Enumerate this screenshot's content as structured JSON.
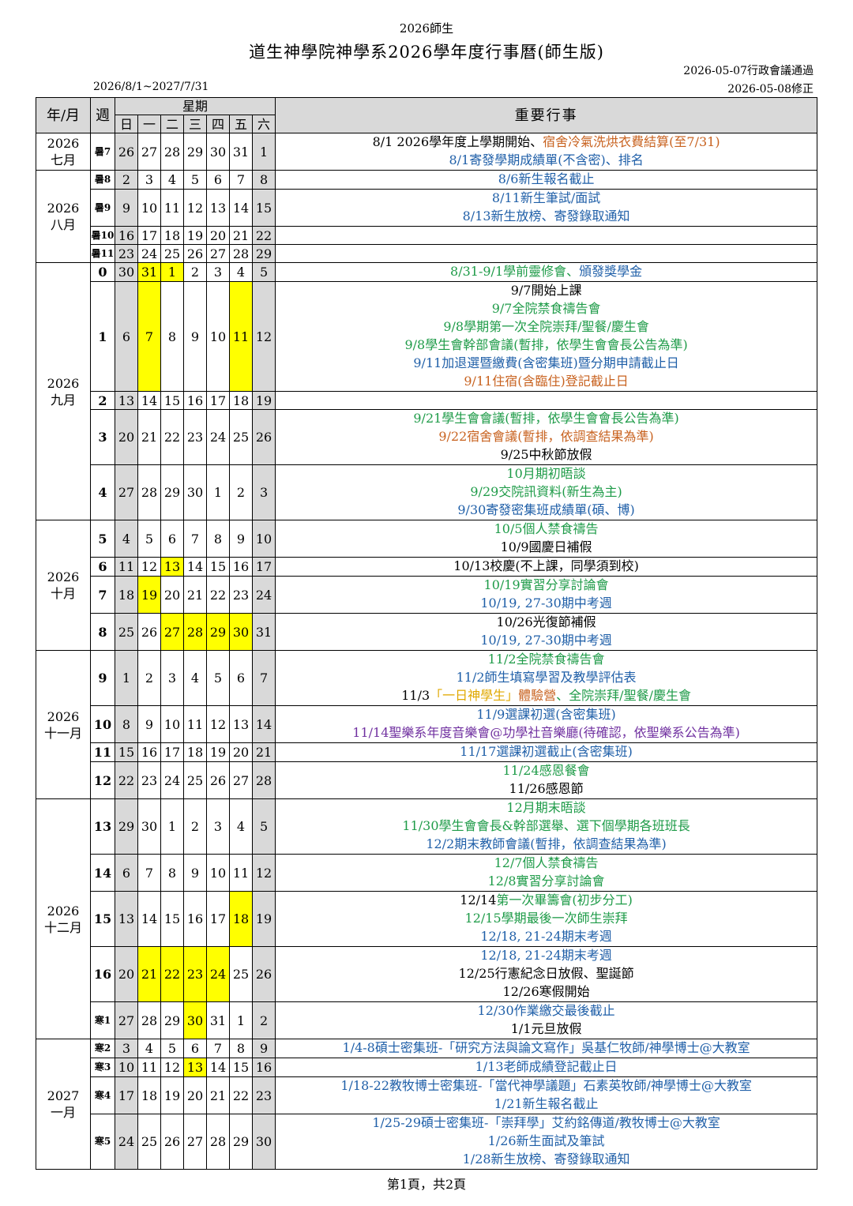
{
  "header": {
    "top_label": "2026師生",
    "title": "道生神學院神學系2026學年度行事曆(師生版)",
    "approved": "2026-05-07行政會議通過",
    "revised": "2026-05-08修正",
    "range": "2026/8/1~2027/7/31"
  },
  "columns": {
    "year_month": "年/月",
    "week": "週",
    "weekday_group": "星期",
    "days": [
      "日",
      "一",
      "二",
      "三",
      "四",
      "五",
      "六"
    ],
    "events": "重要行事"
  },
  "months": {
    "jul": "2026\n七月",
    "aug": "2026\n八月",
    "sep": "2026\n九月",
    "oct": "2026\n十月",
    "nov": "2026\n十一月",
    "dec": "2026\n十二月",
    "jan": "2027\n一月"
  },
  "rows": [
    {
      "week": "暑7",
      "days": [
        "26",
        "27",
        "28",
        "29",
        "30",
        "31",
        "1"
      ],
      "events": [
        [
          [
            "8/1 2026學年度上學期開始、",
            "black"
          ],
          [
            "宿舍冷氣洗烘衣費結算(至7/31)",
            "orange"
          ]
        ],
        [
          [
            "8/1寄發學期成績單(不含密)、排名",
            "blue"
          ]
        ]
      ]
    },
    {
      "week": "暑8",
      "days": [
        "2",
        "3",
        "4",
        "5",
        "6",
        "7",
        "8"
      ],
      "events": [
        [
          [
            "8/6新生報名截止",
            "blue"
          ]
        ]
      ]
    },
    {
      "week": "暑9",
      "days": [
        "9",
        "10",
        "11",
        "12",
        "13",
        "14",
        "15"
      ],
      "events": [
        [
          [
            "8/11新生筆試/面試",
            "blue"
          ]
        ],
        [
          [
            "8/13新生放榜、寄發錄取通知",
            "blue"
          ]
        ]
      ]
    },
    {
      "week": "暑10",
      "days": [
        "16",
        "17",
        "18",
        "19",
        "20",
        "21",
        "22"
      ],
      "events": []
    },
    {
      "week": "暑11",
      "days": [
        "23",
        "24",
        "25",
        "26",
        "27",
        "28",
        "29"
      ],
      "events": []
    },
    {
      "week": "0",
      "days": [
        "30",
        "31",
        "1",
        "2",
        "3",
        "4",
        "5"
      ],
      "events": [
        [
          [
            "8/31-9/1學前靈修會、",
            "green"
          ],
          [
            "頒發獎學金",
            "blue"
          ]
        ]
      ]
    },
    {
      "week": "1",
      "days": [
        "6",
        "7",
        "8",
        "9",
        "10",
        "11",
        "12"
      ],
      "events": [
        [
          [
            "9/7開始上課",
            "black"
          ]
        ],
        [
          [
            "9/7全院禁食禱告會",
            "green"
          ]
        ],
        [
          [
            "9/8學期第一次全院崇拜/聖餐/慶生會",
            "green"
          ]
        ],
        [
          [
            "9/8學生會幹部會議(暫排，依學生會會長公告為準)",
            "green"
          ]
        ],
        [
          [
            "9/11加退選暨繳費(含密集班)暨分期申請截止日",
            "blue"
          ]
        ],
        [
          [
            "9/11住宿(含臨住)登記截止日",
            "orange"
          ]
        ]
      ]
    },
    {
      "week": "2",
      "days": [
        "13",
        "14",
        "15",
        "16",
        "17",
        "18",
        "19"
      ],
      "events": []
    },
    {
      "week": "3",
      "days": [
        "20",
        "21",
        "22",
        "23",
        "24",
        "25",
        "26"
      ],
      "events": [
        [
          [
            "9/21學生會會議(暫排，依學生會會長公告為準)",
            "green"
          ]
        ],
        [
          [
            "9/22宿舍會議(暫排，依調查結果為準)",
            "orange"
          ]
        ],
        [
          [
            "9/25中秋節放假",
            "black"
          ]
        ]
      ]
    },
    {
      "week": "4",
      "days": [
        "27",
        "28",
        "29",
        "30",
        "1",
        "2",
        "3"
      ],
      "events": [
        [
          [
            "10月期初晤談",
            "green"
          ]
        ],
        [
          [
            "9/29交院訊資料(新生為主)",
            "green"
          ]
        ],
        [
          [
            "9/30寄發密集班成績單(碩、博)",
            "blue"
          ]
        ]
      ]
    },
    {
      "week": "5",
      "days": [
        "4",
        "5",
        "6",
        "7",
        "8",
        "9",
        "10"
      ],
      "events": [
        [
          [
            "10/5個人禁食禱告",
            "green"
          ]
        ],
        [
          [
            "10/9國慶日補假",
            "black"
          ]
        ]
      ]
    },
    {
      "week": "6",
      "days": [
        "11",
        "12",
        "13",
        "14",
        "15",
        "16",
        "17"
      ],
      "events": [
        [
          [
            "10/13校慶(不上課，同學須到校)",
            "black"
          ]
        ]
      ]
    },
    {
      "week": "7",
      "days": [
        "18",
        "19",
        "20",
        "21",
        "22",
        "23",
        "24"
      ],
      "events": [
        [
          [
            "10/19實習分享討論會",
            "green"
          ]
        ],
        [
          [
            "10/19, 27-30期中考週",
            "blue"
          ]
        ]
      ]
    },
    {
      "week": "8",
      "days": [
        "25",
        "26",
        "27",
        "28",
        "29",
        "30",
        "31"
      ],
      "events": [
        [
          [
            "10/26光復節補假",
            "black"
          ]
        ],
        [
          [
            "10/19, 27-30期中考週",
            "blue"
          ]
        ]
      ]
    },
    {
      "week": "9",
      "days": [
        "1",
        "2",
        "3",
        "4",
        "5",
        "6",
        "7"
      ],
      "events": [
        [
          [
            "11/2全院禁食禱告會",
            "green"
          ]
        ],
        [
          [
            "11/2師生填寫學習及教學評估表",
            "blue"
          ]
        ],
        [
          [
            "11/3",
            "black"
          ],
          [
            "「一日神學生」",
            "gold"
          ],
          [
            "體驗營",
            "orange"
          ],
          [
            "、全院崇拜/聖餐/慶生會",
            "green"
          ]
        ]
      ]
    },
    {
      "week": "10",
      "days": [
        "8",
        "9",
        "10",
        "11",
        "12",
        "13",
        "14"
      ],
      "events": [
        [
          [
            "11/9選課初選(含密集班)",
            "blue"
          ]
        ],
        [
          [
            "11/14聖樂系年度音樂會@功學社音樂廳(待確認，依聖樂系公告為準)",
            "purple"
          ]
        ]
      ]
    },
    {
      "week": "11",
      "days": [
        "15",
        "16",
        "17",
        "18",
        "19",
        "20",
        "21"
      ],
      "events": [
        [
          [
            "11/17選課初選截止(含密集班)",
            "blue"
          ]
        ]
      ]
    },
    {
      "week": "12",
      "days": [
        "22",
        "23",
        "24",
        "25",
        "26",
        "27",
        "28"
      ],
      "events": [
        [
          [
            "11/24感恩餐會",
            "green"
          ]
        ],
        [
          [
            "11/26感恩節",
            "black"
          ]
        ]
      ]
    },
    {
      "week": "13",
      "days": [
        "29",
        "30",
        "1",
        "2",
        "3",
        "4",
        "5"
      ],
      "events": [
        [
          [
            "12月期末晤談",
            "green"
          ]
        ],
        [
          [
            "11/30學生會會長&幹部選舉、選下個學期各班班長",
            "green"
          ]
        ],
        [
          [
            "12/2期末教師會議(暫排，依調查結果為準)",
            "blue"
          ]
        ]
      ]
    },
    {
      "week": "14",
      "days": [
        "6",
        "7",
        "8",
        "9",
        "10",
        "11",
        "12"
      ],
      "events": [
        [
          [
            "12/7個人禁食禱告",
            "green"
          ]
        ],
        [
          [
            "12/8實習分享討論會",
            "green"
          ]
        ]
      ]
    },
    {
      "week": "15",
      "days": [
        "13",
        "14",
        "15",
        "16",
        "17",
        "18",
        "19"
      ],
      "events": [
        [
          [
            "12/14",
            "black"
          ],
          [
            "第一次畢籌會(初步分工)",
            "green"
          ]
        ],
        [
          [
            "12/15學期最後一次師生崇拜",
            "green"
          ]
        ],
        [
          [
            "12/18, 21-24期末考週",
            "blue"
          ]
        ]
      ]
    },
    {
      "week": "16",
      "days": [
        "20",
        "21",
        "22",
        "23",
        "24",
        "25",
        "26"
      ],
      "events": [
        [
          [
            "12/18, 21-24期末考週",
            "blue"
          ]
        ],
        [
          [
            "12/25行憲紀念日放假、聖誕節",
            "black"
          ]
        ],
        [
          [
            "12/26寒假開始",
            "black"
          ]
        ]
      ]
    },
    {
      "week": "寒1",
      "days": [
        "27",
        "28",
        "29",
        "30",
        "31",
        "1",
        "2"
      ],
      "events": [
        [
          [
            "12/30作業繳交最後截止",
            "blue"
          ]
        ],
        [
          [
            "1/1元旦放假",
            "black"
          ]
        ]
      ]
    },
    {
      "week": "寒2",
      "days": [
        "3",
        "4",
        "5",
        "6",
        "7",
        "8",
        "9"
      ],
      "events": [
        [
          [
            "1/4-8碩士密集班-「研究方法與論文寫作」吳基仁牧師/神學博士@大教室",
            "blue"
          ]
        ]
      ]
    },
    {
      "week": "寒3",
      "days": [
        "10",
        "11",
        "12",
        "13",
        "14",
        "15",
        "16"
      ],
      "events": [
        [
          [
            "1/13老師成績登記截止日",
            "blue"
          ]
        ]
      ]
    },
    {
      "week": "寒4",
      "days": [
        "17",
        "18",
        "19",
        "20",
        "21",
        "22",
        "23"
      ],
      "events": [
        [
          [
            "1/18-22教牧博士密集班-「當代神學議題」石素英牧師/神學博士@大教室",
            "blue"
          ]
        ],
        [
          [
            "1/21新生報名截止",
            "blue"
          ]
        ]
      ]
    },
    {
      "week": "寒5",
      "days": [
        "24",
        "25",
        "26",
        "27",
        "28",
        "29",
        "30"
      ],
      "events": [
        [
          [
            "1/25-29碩士密集班-「崇拜學」艾約銘傳道/教牧博士@大教室",
            "blue"
          ]
        ],
        [
          [
            "1/26新生面試及筆試",
            "blue"
          ]
        ],
        [
          [
            "1/28新生放榜、寄發錄取通知",
            "blue"
          ]
        ]
      ]
    }
  ],
  "highlights": [
    {
      "row": 5,
      "days": [
        1,
        2
      ]
    },
    {
      "row": 6,
      "days": [
        1,
        5
      ]
    },
    {
      "row": 11,
      "days": [
        2
      ]
    },
    {
      "row": 12,
      "days": [
        1
      ]
    },
    {
      "row": 13,
      "days": [
        2,
        3,
        4,
        5
      ]
    },
    {
      "row": 20,
      "days": [
        5
      ]
    },
    {
      "row": 21,
      "days": [
        1,
        2,
        3,
        4
      ]
    },
    {
      "row": 22,
      "days": [
        3
      ]
    },
    {
      "row": 24,
      "days": [
        3
      ]
    }
  ],
  "colors": {
    "highlight": "#ffff00",
    "weekend": "#d9d9d9",
    "blue": "#1f5fa8",
    "green": "#1e9b48",
    "orange": "#c8621f",
    "purple": "#7030a0"
  },
  "footer": "第1頁，共2頁"
}
